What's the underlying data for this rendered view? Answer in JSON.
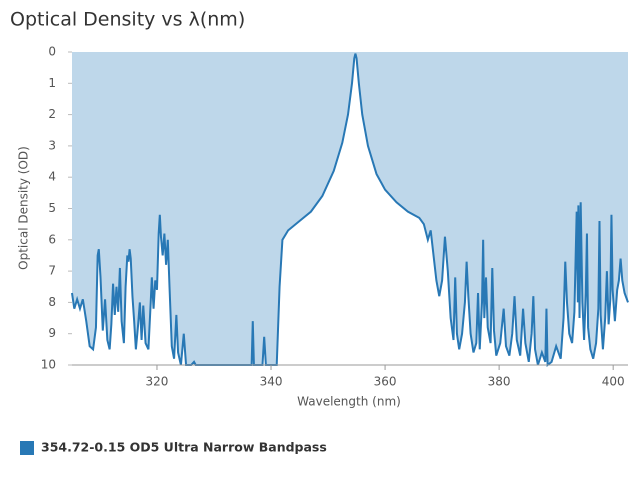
{
  "chart_data": {
    "type": "area",
    "title": "Optical Density vs λ(nm)",
    "x_label": "Wavelength (nm)",
    "y_label": "Optical Density (OD)",
    "x": [
      305.1,
      305.5,
      306,
      306.5,
      307,
      307.6,
      308.2,
      308.8,
      309.3,
      309.6,
      309.8,
      310.1,
      310.5,
      310.9,
      311.3,
      311.7,
      312,
      312.3,
      312.6,
      312.9,
      313.2,
      313.5,
      313.8,
      314.2,
      314.5,
      314.8,
      315,
      315.2,
      315.4,
      315.7,
      316,
      316.3,
      316.7,
      317,
      317.3,
      317.6,
      318,
      318.5,
      318.9,
      319.1,
      319.4,
      319.7,
      320,
      320.3,
      320.5,
      320.7,
      321,
      321.3,
      321.6,
      321.9,
      322.2,
      322.6,
      323,
      323.4,
      323.7,
      324.2,
      324.7,
      325.1,
      326,
      326.5,
      326.8,
      336.6,
      336.8,
      337,
      338.5,
      338.8,
      339.1,
      341,
      341.5,
      342,
      343,
      345,
      347,
      349,
      351,
      352.5,
      353.5,
      354.2,
      354.6,
      354.8,
      355,
      355.4,
      356,
      357,
      358.5,
      360,
      362,
      364,
      366,
      366.8,
      367.5,
      368,
      368.5,
      369,
      369.5,
      370,
      370.5,
      371,
      371.5,
      372,
      372.3,
      372.6,
      373,
      373.5,
      374,
      374.3,
      374.6,
      375,
      375.5,
      376,
      376.3,
      376.6,
      377,
      377.2,
      377.4,
      377.7,
      378,
      378.5,
      378.8,
      379.1,
      379.5,
      380.2,
      380.8,
      381.2,
      381.8,
      382.3,
      382.7,
      383.1,
      383.7,
      384.2,
      384.6,
      385.2,
      385.7,
      386,
      386.3,
      386.8,
      387.5,
      388.1,
      388.3,
      388.5,
      389.2,
      390,
      390.8,
      391.3,
      391.6,
      391.9,
      392.3,
      392.8,
      393.2,
      393.6,
      393.8,
      393.9,
      394.1,
      394.3,
      394.6,
      394.9,
      395.2,
      395.4,
      395.6,
      396,
      396.5,
      397,
      397.4,
      397.6,
      397.8,
      398.2,
      398.6,
      398.9,
      399.2,
      399.5,
      399.7,
      399.9,
      400.3,
      400.7,
      401,
      401.3,
      401.6,
      402,
      402.6
    ],
    "series": [
      {
        "name": "354.72-0.15 OD5 Ultra Narrow Bandpass",
        "color": "#2878b5",
        "fill": "#bed7ea",
        "values": [
          7.7,
          8.2,
          7.9,
          8.2,
          7.9,
          8.6,
          9.4,
          9.5,
          8.8,
          6.5,
          6.3,
          7.2,
          8.9,
          7.9,
          9.2,
          9.5,
          8.7,
          7.4,
          8.4,
          7.5,
          8.3,
          6.9,
          8.6,
          9.3,
          7.5,
          6.5,
          6.7,
          6.3,
          6.6,
          7.8,
          8.6,
          9.5,
          8.7,
          8,
          9.2,
          8.1,
          9.3,
          9.5,
          8,
          7.2,
          8.2,
          7.3,
          7.6,
          5.8,
          5.2,
          5.9,
          6.5,
          5.8,
          6.8,
          6,
          7.5,
          9.4,
          9.8,
          8.4,
          9.6,
          10,
          9,
          10,
          10,
          9.9,
          10,
          10,
          8.6,
          10,
          10,
          9.1,
          10,
          10,
          7.5,
          6,
          5.7,
          5.4,
          5.1,
          4.6,
          3.8,
          2.9,
          2,
          1,
          0.2,
          0.05,
          0.2,
          1,
          2,
          3,
          3.9,
          4.4,
          4.8,
          5.1,
          5.3,
          5.5,
          6,
          5.7,
          6.5,
          7.3,
          7.8,
          7.3,
          5.9,
          7,
          8.5,
          9.2,
          7.2,
          9,
          9.5,
          9,
          8,
          6.7,
          7.8,
          9,
          9.6,
          9.3,
          7.7,
          9.5,
          8,
          6,
          8.5,
          7.2,
          8.8,
          9.3,
          6.9,
          8.9,
          9.7,
          9.3,
          8.2,
          9.4,
          9.7,
          9,
          7.8,
          9.2,
          9.7,
          8.2,
          9.3,
          9.9,
          9,
          7.8,
          9.5,
          10,
          9.6,
          9.9,
          8.2,
          10,
          9.9,
          9.4,
          9.8,
          8.5,
          6.7,
          8,
          9,
          9.3,
          8.3,
          5.1,
          8,
          4.9,
          8.5,
          4.8,
          8,
          9.2,
          7.7,
          5.8,
          8.8,
          9.5,
          9.8,
          9.3,
          8.2,
          5.4,
          8.4,
          9.5,
          8.5,
          7,
          8.7,
          7.9,
          5.2,
          7.6,
          8.6,
          7.6,
          7.3,
          6.6,
          7.3,
          7.7,
          8
        ]
      }
    ],
    "xlim": [
      305.1,
      402.6
    ],
    "xticks": [
      320,
      340,
      360,
      380,
      400
    ],
    "ylim": [
      0,
      10
    ],
    "yticks": [
      0,
      1,
      2,
      3,
      4,
      5,
      6,
      7,
      8,
      9,
      10
    ],
    "y_inverted": true,
    "legend": "bottom-left"
  }
}
